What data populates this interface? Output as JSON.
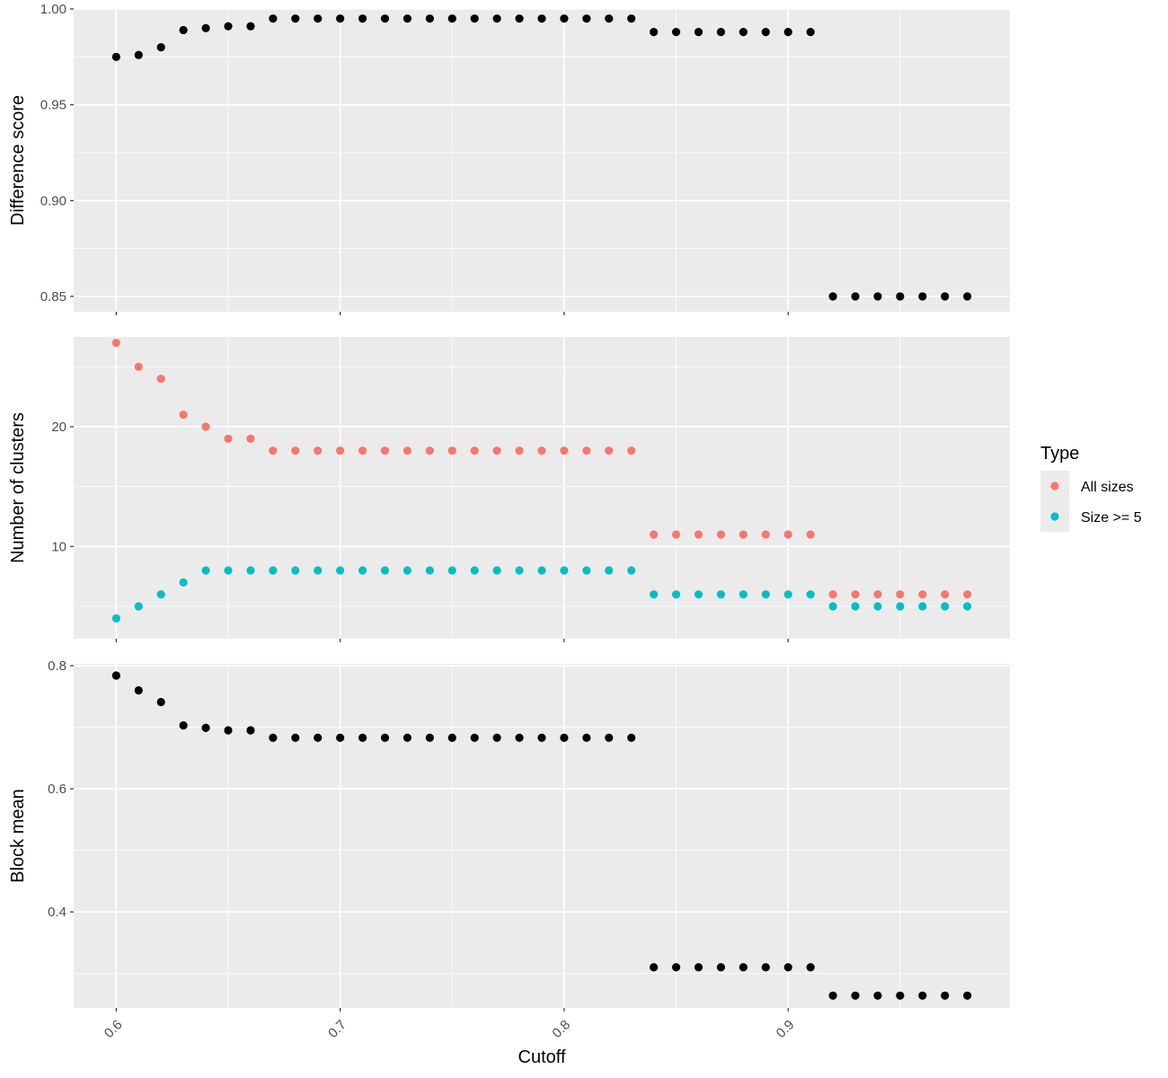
{
  "chart_data": {
    "type": "scatter",
    "xlabel": "Cutoff",
    "xlim": [
      0.581,
      0.999
    ],
    "x_ticks": [
      0.6,
      0.7,
      0.8,
      0.9
    ],
    "x_tick_labels": [
      "0.6",
      "0.7",
      "0.8",
      "0.9"
    ],
    "x": [
      0.6,
      0.61,
      0.62,
      0.63,
      0.64,
      0.65,
      0.66,
      0.67,
      0.68,
      0.69,
      0.7,
      0.71,
      0.72,
      0.73,
      0.74,
      0.75,
      0.76,
      0.77,
      0.78,
      0.79,
      0.8,
      0.81,
      0.82,
      0.83,
      0.84,
      0.85,
      0.86,
      0.87,
      0.88,
      0.89,
      0.9,
      0.91,
      0.92,
      0.93,
      0.94,
      0.95,
      0.96,
      0.97,
      0.98
    ],
    "grid": true,
    "background": "#ebebeb",
    "legend": {
      "title": "Type",
      "position": "right",
      "entries": [
        {
          "label": "All sizes",
          "color": "#f8766d"
        },
        {
          "label": "Size >= 5",
          "color": "#00bfc4"
        }
      ]
    },
    "panels": [
      {
        "ylabel": "Difference score",
        "ylim": [
          0.842,
          1.0
        ],
        "y_ticks": [
          0.85,
          0.9,
          0.95,
          1.0
        ],
        "y_tick_labels": [
          "0.85",
          "0.90",
          "0.95",
          "1.00"
        ],
        "series": [
          {
            "color": "#000000",
            "values": [
              0.975,
              0.976,
              0.98,
              0.989,
              0.99,
              0.991,
              0.991,
              0.995,
              0.995,
              0.995,
              0.995,
              0.995,
              0.995,
              0.995,
              0.995,
              0.995,
              0.995,
              0.995,
              0.995,
              0.995,
              0.995,
              0.995,
              0.995,
              0.995,
              0.988,
              0.988,
              0.988,
              0.988,
              0.988,
              0.988,
              0.988,
              0.988,
              0.85,
              0.85,
              0.85,
              0.85,
              0.85,
              0.85,
              0.85
            ]
          }
        ]
      },
      {
        "ylabel": "Number of clusters",
        "ylim": [
          2.3,
          27.5
        ],
        "y_ticks": [
          10,
          20
        ],
        "y_tick_labels": [
          "10",
          "20"
        ],
        "series": [
          {
            "name": "All sizes",
            "color": "#f8766d",
            "values": [
              27,
              25,
              24,
              21,
              20,
              19,
              19,
              18,
              18,
              18,
              18,
              18,
              18,
              18,
              18,
              18,
              18,
              18,
              18,
              18,
              18,
              18,
              18,
              18,
              11,
              11,
              11,
              11,
              11,
              11,
              11,
              11,
              6,
              6,
              6,
              6,
              6,
              6,
              6
            ]
          },
          {
            "name": "Size >= 5",
            "color": "#00bfc4",
            "values": [
              4,
              5,
              6,
              7,
              8,
              8,
              8,
              8,
              8,
              8,
              8,
              8,
              8,
              8,
              8,
              8,
              8,
              8,
              8,
              8,
              8,
              8,
              8,
              8,
              6,
              6,
              6,
              6,
              6,
              6,
              6,
              6,
              5,
              5,
              5,
              5,
              5,
              5,
              5
            ]
          }
        ]
      },
      {
        "ylabel": "Block mean",
        "ylim": [
          0.244,
          0.803
        ],
        "y_ticks": [
          0.4,
          0.6,
          0.8
        ],
        "y_tick_labels": [
          "0.4",
          "0.6",
          "0.8"
        ],
        "series": [
          {
            "color": "#000000",
            "values": [
              0.784,
              0.76,
              0.741,
              0.703,
              0.699,
              0.695,
              0.695,
              0.683,
              0.683,
              0.683,
              0.683,
              0.683,
              0.683,
              0.683,
              0.683,
              0.683,
              0.683,
              0.683,
              0.683,
              0.683,
              0.683,
              0.683,
              0.683,
              0.683,
              0.31,
              0.31,
              0.31,
              0.31,
              0.31,
              0.31,
              0.31,
              0.31,
              0.264,
              0.264,
              0.264,
              0.264,
              0.264,
              0.264,
              0.264
            ]
          }
        ]
      }
    ]
  }
}
